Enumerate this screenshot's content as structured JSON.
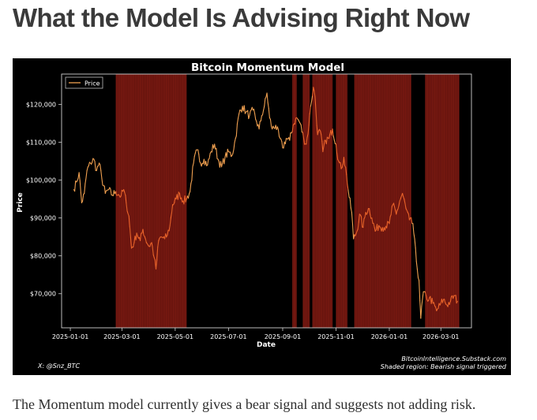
{
  "article": {
    "heading": "What the Model Is Advising Right Now",
    "caption": "The Momentum model currently gives a bear signal and suggests not adding risk."
  },
  "chart_data": {
    "type": "line",
    "title": "Bitcoin Momentum Model",
    "xlabel": "Date",
    "ylabel": "Price",
    "x_range": [
      "2024-12-22",
      "2026-04-05"
    ],
    "ylim": [
      61000,
      128000
    ],
    "y_ticks": [
      70000,
      80000,
      90000,
      100000,
      110000,
      120000
    ],
    "y_tick_labels": [
      "$70,000",
      "$80,000",
      "$90,000",
      "$100,000",
      "$110,000",
      "$120,000"
    ],
    "x_ticks": [
      "2025-01-01",
      "2025-03-01",
      "2025-05-01",
      "2025-07-01",
      "2025-09-01",
      "2025-11-01",
      "2026-01-01",
      "2026-03-01"
    ],
    "x_tick_labels": [
      "2025-01-01",
      "2025-03-01",
      "2025-05-01",
      "2025-07-01",
      "2025-09-01",
      "2025-11-01",
      "2026-01-01",
      "2026-03-01"
    ],
    "legend": {
      "placement": "upper-left",
      "entries": [
        "Price"
      ]
    },
    "grid": false,
    "colors": {
      "background": "#000000",
      "line": "#f0a050",
      "line_bearish": "#e8632a",
      "shade": "#7a1a12",
      "text": "#ffffff"
    },
    "bearish_periods": [
      {
        "start": "2025-02-22",
        "end": "2025-05-14"
      },
      {
        "start": "2025-09-12",
        "end": "2025-09-17"
      },
      {
        "start": "2025-09-24",
        "end": "2025-10-02"
      },
      {
        "start": "2025-10-05",
        "end": "2025-10-28"
      },
      {
        "start": "2025-11-01",
        "end": "2025-11-14"
      },
      {
        "start": "2025-11-22",
        "end": "2026-01-26"
      },
      {
        "start": "2026-02-11",
        "end": "2026-03-22"
      }
    ],
    "series": [
      {
        "name": "Price",
        "points": [
          [
            "2025-01-05",
            97500
          ],
          [
            "2025-01-08",
            99500
          ],
          [
            "2025-01-11",
            102000
          ],
          [
            "2025-01-14",
            94000
          ],
          [
            "2025-01-17",
            96500
          ],
          [
            "2025-01-20",
            102500
          ],
          [
            "2025-01-24",
            104500
          ],
          [
            "2025-01-28",
            105500
          ],
          [
            "2025-01-31",
            102500
          ],
          [
            "2025-02-03",
            104500
          ],
          [
            "2025-02-06",
            100500
          ],
          [
            "2025-02-10",
            96500
          ],
          [
            "2025-02-14",
            97500
          ],
          [
            "2025-02-18",
            96000
          ],
          [
            "2025-02-22",
            97000
          ],
          [
            "2025-02-25",
            96200
          ],
          [
            "2025-02-28",
            95800
          ],
          [
            "2025-03-03",
            97500
          ],
          [
            "2025-03-06",
            94000
          ],
          [
            "2025-03-09",
            90500
          ],
          [
            "2025-03-12",
            82000
          ],
          [
            "2025-03-15",
            83500
          ],
          [
            "2025-03-18",
            86000
          ],
          [
            "2025-03-22",
            84000
          ],
          [
            "2025-03-25",
            87000
          ],
          [
            "2025-03-28",
            84500
          ],
          [
            "2025-04-01",
            82500
          ],
          [
            "2025-04-04",
            83500
          ],
          [
            "2025-04-07",
            79500
          ],
          [
            "2025-04-09",
            76500
          ],
          [
            "2025-04-12",
            84000
          ],
          [
            "2025-04-15",
            85000
          ],
          [
            "2025-04-19",
            84500
          ],
          [
            "2025-04-22",
            85500
          ],
          [
            "2025-04-25",
            88000
          ],
          [
            "2025-04-28",
            93500
          ],
          [
            "2025-05-02",
            95000
          ],
          [
            "2025-05-06",
            96500
          ],
          [
            "2025-05-10",
            94500
          ],
          [
            "2025-05-14",
            95000
          ],
          [
            "2025-05-18",
            97000
          ],
          [
            "2025-05-22",
            104500
          ],
          [
            "2025-05-26",
            108000
          ],
          [
            "2025-05-30",
            104500
          ],
          [
            "2025-06-03",
            105500
          ],
          [
            "2025-06-07",
            104000
          ],
          [
            "2025-06-11",
            107500
          ],
          [
            "2025-06-15",
            109500
          ],
          [
            "2025-06-19",
            105500
          ],
          [
            "2025-06-23",
            103500
          ],
          [
            "2025-06-27",
            106000
          ],
          [
            "2025-07-01",
            107500
          ],
          [
            "2025-07-05",
            106500
          ],
          [
            "2025-07-09",
            111000
          ],
          [
            "2025-07-13",
            117500
          ],
          [
            "2025-07-17",
            119500
          ],
          [
            "2025-07-21",
            118000
          ],
          [
            "2025-07-25",
            117000
          ],
          [
            "2025-07-29",
            118500
          ],
          [
            "2025-08-02",
            115500
          ],
          [
            "2025-08-05",
            113500
          ],
          [
            "2025-08-08",
            117000
          ],
          [
            "2025-08-11",
            119500
          ],
          [
            "2025-08-14",
            123000
          ],
          [
            "2025-08-17",
            116500
          ],
          [
            "2025-08-20",
            113500
          ],
          [
            "2025-08-24",
            114500
          ],
          [
            "2025-08-28",
            111500
          ],
          [
            "2025-09-01",
            108500
          ],
          [
            "2025-09-05",
            111000
          ],
          [
            "2025-09-09",
            110500
          ],
          [
            "2025-09-13",
            114500
          ],
          [
            "2025-09-17",
            116500
          ],
          [
            "2025-09-21",
            115000
          ],
          [
            "2025-09-25",
            111000
          ],
          [
            "2025-09-28",
            109500
          ],
          [
            "2025-10-01",
            114500
          ],
          [
            "2025-10-03",
            119500
          ],
          [
            "2025-10-06",
            124500
          ],
          [
            "2025-10-08",
            122000
          ],
          [
            "2025-10-11",
            112000
          ],
          [
            "2025-10-14",
            113000
          ],
          [
            "2025-10-17",
            107500
          ],
          [
            "2025-10-20",
            110500
          ],
          [
            "2025-10-24",
            111000
          ],
          [
            "2025-10-28",
            113500
          ],
          [
            "2025-11-01",
            109500
          ],
          [
            "2025-11-04",
            105000
          ],
          [
            "2025-11-07",
            103000
          ],
          [
            "2025-11-10",
            106000
          ],
          [
            "2025-11-13",
            101500
          ],
          [
            "2025-11-16",
            95500
          ],
          [
            "2025-11-19",
            91500
          ],
          [
            "2025-11-21",
            84500
          ],
          [
            "2025-11-25",
            86500
          ],
          [
            "2025-11-28",
            91000
          ],
          [
            "2025-12-02",
            87500
          ],
          [
            "2025-12-05",
            91500
          ],
          [
            "2025-12-09",
            92500
          ],
          [
            "2025-12-12",
            90000
          ],
          [
            "2025-12-16",
            86500
          ],
          [
            "2025-12-20",
            88000
          ],
          [
            "2025-12-24",
            87500
          ],
          [
            "2025-12-28",
            87800
          ],
          [
            "2026-01-01",
            88500
          ],
          [
            "2026-01-05",
            93500
          ],
          [
            "2026-01-09",
            91000
          ],
          [
            "2026-01-13",
            94500
          ],
          [
            "2026-01-16",
            96500
          ],
          [
            "2026-01-20",
            92500
          ],
          [
            "2026-01-24",
            89500
          ],
          [
            "2026-01-28",
            88500
          ],
          [
            "2026-02-01",
            78500
          ],
          [
            "2026-02-04",
            73500
          ],
          [
            "2026-02-06",
            63500
          ],
          [
            "2026-02-09",
            70500
          ],
          [
            "2026-02-13",
            68500
          ],
          [
            "2026-02-16",
            69000
          ],
          [
            "2026-02-20",
            67500
          ],
          [
            "2026-02-24",
            65500
          ],
          [
            "2026-02-28",
            67000
          ],
          [
            "2026-03-04",
            68500
          ],
          [
            "2026-03-08",
            67000
          ],
          [
            "2026-03-12",
            68000
          ],
          [
            "2026-03-16",
            69500
          ],
          [
            "2026-03-20",
            68000
          ]
        ]
      }
    ],
    "annotations": {
      "credit_left": "X: @Snz_BTC",
      "credit_right_line1": "BitcoinIntelligence.Substack.com",
      "credit_right_line2": "Shaded region: Bearish signal triggered"
    }
  }
}
